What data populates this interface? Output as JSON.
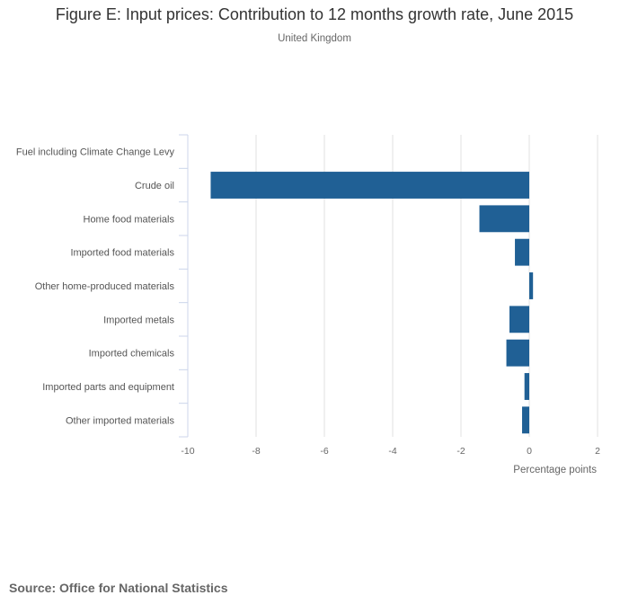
{
  "chart_data": {
    "type": "bar",
    "orientation": "horizontal",
    "title": "Figure E: Input prices: Contribution to 12 months growth rate, June 2015",
    "subtitle": "United Kingdom",
    "xlabel": "Percentage points",
    "ylabel": "",
    "xlim": [
      -10,
      2
    ],
    "xticks": [
      -10,
      -8,
      -6,
      -4,
      -2,
      0,
      2
    ],
    "grid": true,
    "legend": "none",
    "bar_color": "#206095",
    "categories": [
      "Fuel including Climate Change Levy",
      "Crude oil",
      "Home food materials",
      "Imported food materials",
      "Other home-produced materials",
      "Imported metals",
      "Imported chemicals",
      "Imported parts and equipment",
      "Other imported materials"
    ],
    "values": [
      0,
      -9.33,
      -1.46,
      -0.42,
      0.11,
      -0.58,
      -0.67,
      -0.14,
      -0.21
    ]
  },
  "source": "Source: Office for National Statistics"
}
